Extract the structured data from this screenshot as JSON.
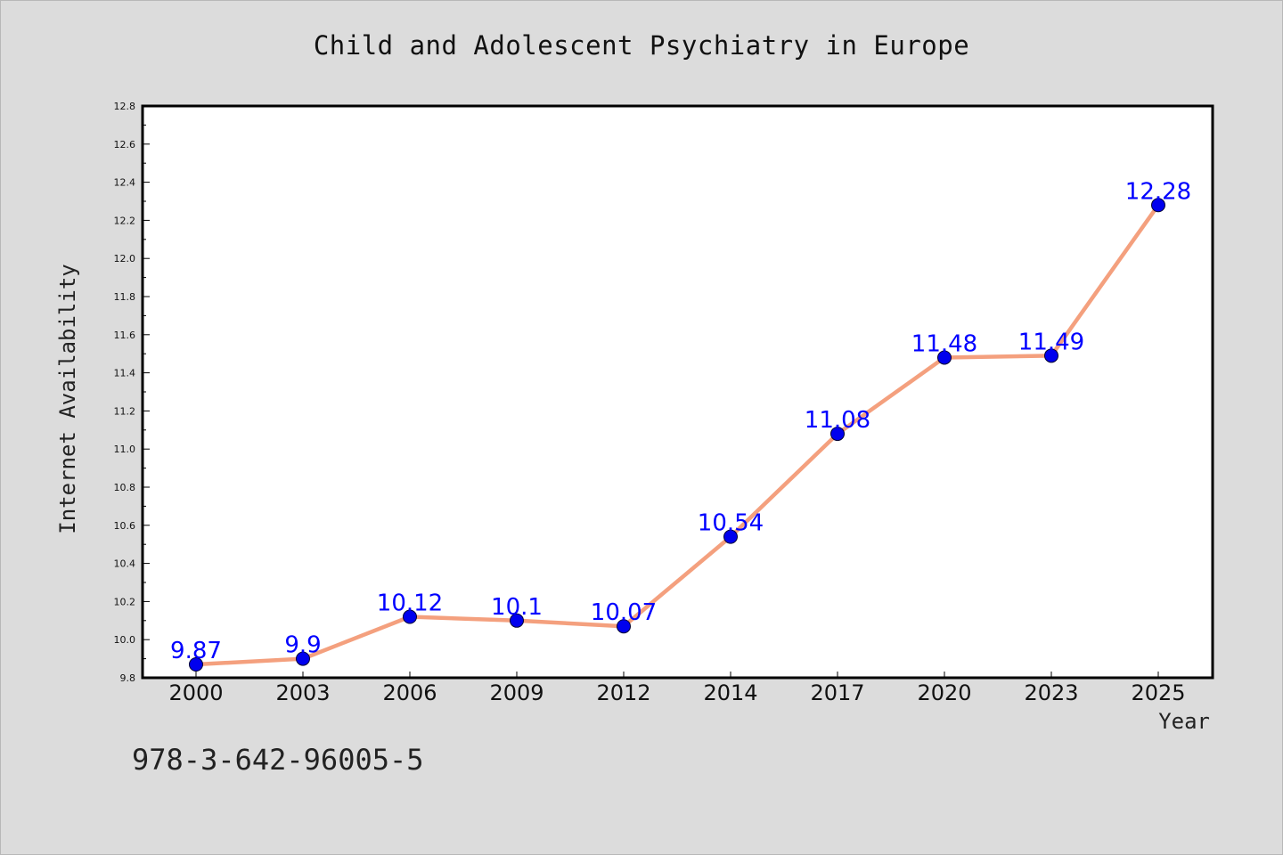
{
  "chart_data": {
    "type": "line",
    "title": "Child and Adolescent Psychiatry in Europe",
    "xlabel": "Year",
    "ylabel": "Internet Availability",
    "categories": [
      "2000",
      "2003",
      "2006",
      "2009",
      "2012",
      "2014",
      "2017",
      "2020",
      "2023",
      "2025"
    ],
    "series": [
      {
        "values": [
          9.87,
          9.9,
          10.12,
          10.1,
          10.07,
          10.54,
          11.08,
          11.48,
          11.49,
          12.28
        ],
        "data_labels": [
          "9.87",
          "9.9",
          "10.12",
          "10.1",
          "10.07",
          "10.54",
          "11.08",
          "11.48",
          "11.49",
          "12.28"
        ],
        "line_color": "#f4a07e",
        "marker_color": "#0000ee"
      }
    ],
    "ylim": [
      9.8,
      12.8
    ],
    "yticks": [
      "9.8",
      "10.0",
      "10.2",
      "10.4",
      "10.6",
      "10.8",
      "11.0",
      "11.2",
      "11.4",
      "11.6",
      "11.8",
      "12.0",
      "12.2",
      "12.4",
      "12.6",
      "12.8"
    ],
    "grid": false,
    "legend": false
  },
  "footer_text": "978-3-642-96005-5",
  "colors": {
    "background": "#dcdcdc",
    "plot_background": "#ffffff",
    "line": "#f4a07e",
    "marker": "#0000ee",
    "label": "#0000ff"
  }
}
